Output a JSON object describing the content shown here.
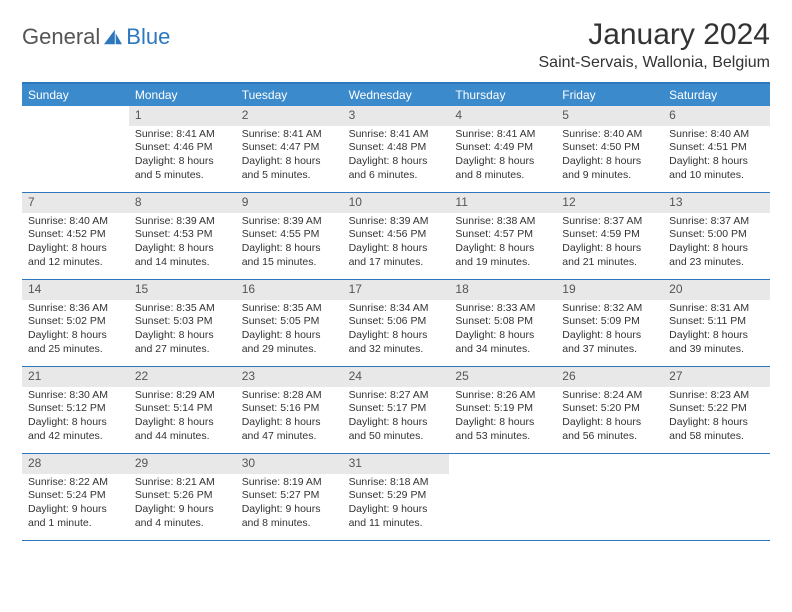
{
  "logo": {
    "part1": "General",
    "part2": "Blue"
  },
  "title": "January 2024",
  "location": "Saint-Servais, Wallonia, Belgium",
  "colors": {
    "header_bg": "#3b8acc",
    "border": "#2d78bd",
    "date_bg": "#e8e8e8",
    "text": "#333333",
    "logo_gray": "#555555",
    "logo_blue": "#2d78bd"
  },
  "day_names": [
    "Sunday",
    "Monday",
    "Tuesday",
    "Wednesday",
    "Thursday",
    "Friday",
    "Saturday"
  ],
  "weeks": [
    [
      {
        "date": "",
        "lines": []
      },
      {
        "date": "1",
        "lines": [
          "Sunrise: 8:41 AM",
          "Sunset: 4:46 PM",
          "Daylight: 8 hours",
          "and 5 minutes."
        ]
      },
      {
        "date": "2",
        "lines": [
          "Sunrise: 8:41 AM",
          "Sunset: 4:47 PM",
          "Daylight: 8 hours",
          "and 5 minutes."
        ]
      },
      {
        "date": "3",
        "lines": [
          "Sunrise: 8:41 AM",
          "Sunset: 4:48 PM",
          "Daylight: 8 hours",
          "and 6 minutes."
        ]
      },
      {
        "date": "4",
        "lines": [
          "Sunrise: 8:41 AM",
          "Sunset: 4:49 PM",
          "Daylight: 8 hours",
          "and 8 minutes."
        ]
      },
      {
        "date": "5",
        "lines": [
          "Sunrise: 8:40 AM",
          "Sunset: 4:50 PM",
          "Daylight: 8 hours",
          "and 9 minutes."
        ]
      },
      {
        "date": "6",
        "lines": [
          "Sunrise: 8:40 AM",
          "Sunset: 4:51 PM",
          "Daylight: 8 hours",
          "and 10 minutes."
        ]
      }
    ],
    [
      {
        "date": "7",
        "lines": [
          "Sunrise: 8:40 AM",
          "Sunset: 4:52 PM",
          "Daylight: 8 hours",
          "and 12 minutes."
        ]
      },
      {
        "date": "8",
        "lines": [
          "Sunrise: 8:39 AM",
          "Sunset: 4:53 PM",
          "Daylight: 8 hours",
          "and 14 minutes."
        ]
      },
      {
        "date": "9",
        "lines": [
          "Sunrise: 8:39 AM",
          "Sunset: 4:55 PM",
          "Daylight: 8 hours",
          "and 15 minutes."
        ]
      },
      {
        "date": "10",
        "lines": [
          "Sunrise: 8:39 AM",
          "Sunset: 4:56 PM",
          "Daylight: 8 hours",
          "and 17 minutes."
        ]
      },
      {
        "date": "11",
        "lines": [
          "Sunrise: 8:38 AM",
          "Sunset: 4:57 PM",
          "Daylight: 8 hours",
          "and 19 minutes."
        ]
      },
      {
        "date": "12",
        "lines": [
          "Sunrise: 8:37 AM",
          "Sunset: 4:59 PM",
          "Daylight: 8 hours",
          "and 21 minutes."
        ]
      },
      {
        "date": "13",
        "lines": [
          "Sunrise: 8:37 AM",
          "Sunset: 5:00 PM",
          "Daylight: 8 hours",
          "and 23 minutes."
        ]
      }
    ],
    [
      {
        "date": "14",
        "lines": [
          "Sunrise: 8:36 AM",
          "Sunset: 5:02 PM",
          "Daylight: 8 hours",
          "and 25 minutes."
        ]
      },
      {
        "date": "15",
        "lines": [
          "Sunrise: 8:35 AM",
          "Sunset: 5:03 PM",
          "Daylight: 8 hours",
          "and 27 minutes."
        ]
      },
      {
        "date": "16",
        "lines": [
          "Sunrise: 8:35 AM",
          "Sunset: 5:05 PM",
          "Daylight: 8 hours",
          "and 29 minutes."
        ]
      },
      {
        "date": "17",
        "lines": [
          "Sunrise: 8:34 AM",
          "Sunset: 5:06 PM",
          "Daylight: 8 hours",
          "and 32 minutes."
        ]
      },
      {
        "date": "18",
        "lines": [
          "Sunrise: 8:33 AM",
          "Sunset: 5:08 PM",
          "Daylight: 8 hours",
          "and 34 minutes."
        ]
      },
      {
        "date": "19",
        "lines": [
          "Sunrise: 8:32 AM",
          "Sunset: 5:09 PM",
          "Daylight: 8 hours",
          "and 37 minutes."
        ]
      },
      {
        "date": "20",
        "lines": [
          "Sunrise: 8:31 AM",
          "Sunset: 5:11 PM",
          "Daylight: 8 hours",
          "and 39 minutes."
        ]
      }
    ],
    [
      {
        "date": "21",
        "lines": [
          "Sunrise: 8:30 AM",
          "Sunset: 5:12 PM",
          "Daylight: 8 hours",
          "and 42 minutes."
        ]
      },
      {
        "date": "22",
        "lines": [
          "Sunrise: 8:29 AM",
          "Sunset: 5:14 PM",
          "Daylight: 8 hours",
          "and 44 minutes."
        ]
      },
      {
        "date": "23",
        "lines": [
          "Sunrise: 8:28 AM",
          "Sunset: 5:16 PM",
          "Daylight: 8 hours",
          "and 47 minutes."
        ]
      },
      {
        "date": "24",
        "lines": [
          "Sunrise: 8:27 AM",
          "Sunset: 5:17 PM",
          "Daylight: 8 hours",
          "and 50 minutes."
        ]
      },
      {
        "date": "25",
        "lines": [
          "Sunrise: 8:26 AM",
          "Sunset: 5:19 PM",
          "Daylight: 8 hours",
          "and 53 minutes."
        ]
      },
      {
        "date": "26",
        "lines": [
          "Sunrise: 8:24 AM",
          "Sunset: 5:20 PM",
          "Daylight: 8 hours",
          "and 56 minutes."
        ]
      },
      {
        "date": "27",
        "lines": [
          "Sunrise: 8:23 AM",
          "Sunset: 5:22 PM",
          "Daylight: 8 hours",
          "and 58 minutes."
        ]
      }
    ],
    [
      {
        "date": "28",
        "lines": [
          "Sunrise: 8:22 AM",
          "Sunset: 5:24 PM",
          "Daylight: 9 hours",
          "and 1 minute."
        ]
      },
      {
        "date": "29",
        "lines": [
          "Sunrise: 8:21 AM",
          "Sunset: 5:26 PM",
          "Daylight: 9 hours",
          "and 4 minutes."
        ]
      },
      {
        "date": "30",
        "lines": [
          "Sunrise: 8:19 AM",
          "Sunset: 5:27 PM",
          "Daylight: 9 hours",
          "and 8 minutes."
        ]
      },
      {
        "date": "31",
        "lines": [
          "Sunrise: 8:18 AM",
          "Sunset: 5:29 PM",
          "Daylight: 9 hours",
          "and 11 minutes."
        ]
      },
      {
        "date": "",
        "lines": []
      },
      {
        "date": "",
        "lines": []
      },
      {
        "date": "",
        "lines": []
      }
    ]
  ]
}
